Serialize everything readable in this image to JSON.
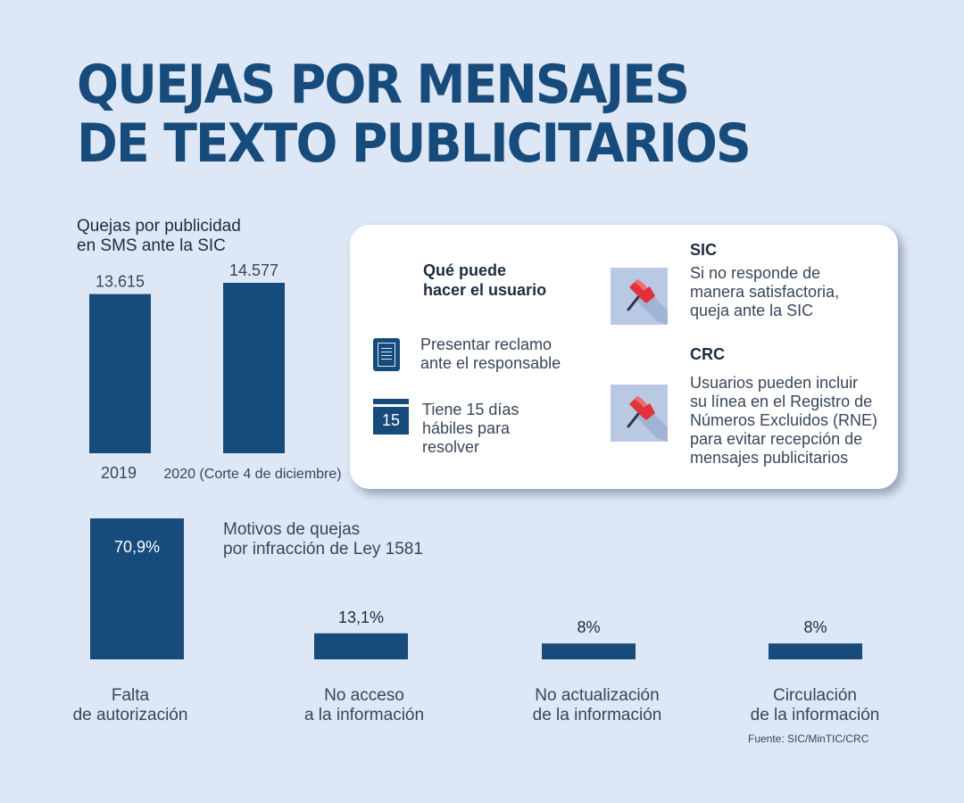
{
  "title": {
    "line1": "QUEJAS POR MENSAJES",
    "line2": "DE TEXTO PUBLICITARIOS"
  },
  "colors": {
    "background": "#dde7f5",
    "title": "#174b7c",
    "bar": "#174b7c",
    "card": "#ffffff",
    "flag": "#e0323b"
  },
  "chart_data": [
    {
      "type": "bar",
      "title_line1": "Quejas por publicidad",
      "title_line2": "en SMS ante la SIC",
      "categories": [
        "2019",
        "2020 (Corte 4 de diciembre)"
      ],
      "values": [
        13615,
        14577
      ],
      "value_labels": [
        "13.615",
        "14.577"
      ],
      "ylim": [
        0,
        14577
      ]
    },
    {
      "type": "bar",
      "title_line1": "Motivos de quejas",
      "title_line2": "por infracción de Ley 1581",
      "categories": [
        [
          "Falta",
          "de autorización"
        ],
        [
          "No acceso",
          "a la información"
        ],
        [
          "No actualización",
          "de la información"
        ],
        [
          "Circulación",
          "de la información"
        ]
      ],
      "values": [
        70.9,
        13.1,
        8,
        8
      ],
      "value_labels": [
        "70,9%",
        "13,1%",
        "8%",
        "8%"
      ],
      "unit": "%",
      "ylim": [
        0,
        70.9
      ]
    }
  ],
  "card": {
    "heading_line1": "Qué puede",
    "heading_line2": "hacer el usuario",
    "item1": {
      "icon": "document-icon",
      "line1": "Presentar reclamo",
      "line2": "ante el responsable"
    },
    "item2": {
      "icon": "calendar-icon",
      "calendar_number": "15",
      "line1": "Tiene 15 días",
      "line2": "hábiles para",
      "line3": "resolver"
    },
    "sic": {
      "icon": "flag-icon",
      "title": "SIC",
      "line1": "Si no responde de",
      "line2": "manera satisfactoria,",
      "line3": "queja ante la SIC"
    },
    "crc": {
      "icon": "flag-icon",
      "title": "CRC",
      "line1": "Usuarios pueden incluir",
      "line2": "su línea en el Registro de",
      "line3": "Números Excluidos (RNE)",
      "line4": "para evitar recepción de",
      "line5": "mensajes publicitarios"
    }
  },
  "source": "Fuente: SIC/MinTIC/CRC"
}
